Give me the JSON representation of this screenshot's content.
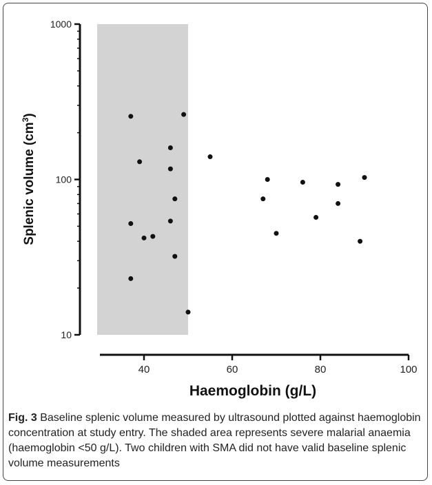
{
  "chart_data": {
    "type": "scatter",
    "xlabel": "Haemoglobin (g/L)",
    "ylabel": "Splenic volume (cm",
    "ylabel_superscript": "3",
    "ylabel_close": ")",
    "x_ticks": [
      40,
      60,
      80,
      100
    ],
    "y_ticks": [
      10,
      100,
      1000
    ],
    "xlim": [
      30,
      100
    ],
    "ylim": [
      10,
      1000
    ],
    "y_scale": "log",
    "grid": false,
    "shaded_region": {
      "x_from": 30,
      "x_to": 50,
      "color": "#d3d3d3"
    },
    "point_color": "#111111",
    "points": [
      {
        "x": 37,
        "y": 255
      },
      {
        "x": 37,
        "y": 52
      },
      {
        "x": 37,
        "y": 23
      },
      {
        "x": 39,
        "y": 130
      },
      {
        "x": 40,
        "y": 42
      },
      {
        "x": 42,
        "y": 43
      },
      {
        "x": 46,
        "y": 160
      },
      {
        "x": 46,
        "y": 117
      },
      {
        "x": 46,
        "y": 54
      },
      {
        "x": 47,
        "y": 75
      },
      {
        "x": 47,
        "y": 32
      },
      {
        "x": 49,
        "y": 262
      },
      {
        "x": 50,
        "y": 14
      },
      {
        "x": 55,
        "y": 140
      },
      {
        "x": 67,
        "y": 75
      },
      {
        "x": 68,
        "y": 100
      },
      {
        "x": 70,
        "y": 45
      },
      {
        "x": 76,
        "y": 96
      },
      {
        "x": 79,
        "y": 57
      },
      {
        "x": 84,
        "y": 93
      },
      {
        "x": 84,
        "y": 70
      },
      {
        "x": 89,
        "y": 40
      },
      {
        "x": 90,
        "y": 103
      }
    ]
  },
  "caption": {
    "label": "Fig. 3",
    "text": "Baseline splenic volume measured by ultrasound plotted against haemoglobin concentration at study entry. The shaded area represents severe malarial anaemia (haemoglobin <50 g/L). Two children with SMA did not have valid baseline splenic volume measurements"
  }
}
